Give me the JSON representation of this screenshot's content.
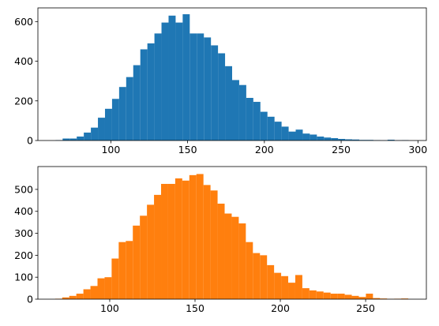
{
  "chart_data": [
    {
      "type": "histogram",
      "color": "#1f77b4",
      "bins": [
        64,
        68.6,
        73.2,
        77.8,
        82.4,
        87,
        91.6,
        96.2,
        100.8,
        105.4,
        110,
        114.6,
        119.2,
        123.8,
        128.4,
        133,
        137.6,
        142.2,
        146.8,
        151.4,
        156,
        160.6,
        165.2,
        169.8,
        174.4,
        179,
        183.6,
        188.2,
        192.8,
        197.4,
        202,
        206.6,
        211.2,
        215.8,
        220.4,
        225,
        229.6,
        234.2,
        238.8,
        243.4,
        248,
        252.6,
        257.2,
        261.8,
        266.4,
        271,
        275.6,
        280.2,
        284.8,
        289.4,
        294
      ],
      "counts": [
        2,
        10,
        10,
        20,
        40,
        65,
        115,
        160,
        210,
        270,
        320,
        380,
        460,
        490,
        540,
        595,
        630,
        595,
        637,
        540,
        540,
        520,
        480,
        440,
        375,
        305,
        280,
        215,
        195,
        145,
        120,
        95,
        70,
        45,
        55,
        35,
        30,
        20,
        15,
        12,
        8,
        6,
        5,
        3,
        3,
        2,
        1,
        4,
        1,
        2
      ],
      "xlim": [
        52.5,
        305.5
      ],
      "xticks": [
        100,
        150,
        200,
        250,
        300
      ],
      "ylim": [
        0,
        669
      ],
      "yticks": [
        0,
        200,
        400,
        600
      ]
    },
    {
      "type": "histogram",
      "color": "#ff7f0e",
      "bins": [
        68,
        72.14,
        76.28,
        80.42,
        84.56,
        88.7,
        92.84,
        96.98,
        101.12,
        105.26,
        109.4,
        113.54,
        117.68,
        121.82,
        125.96,
        130.1,
        134.24,
        138.38,
        142.52,
        146.66,
        150.8,
        154.94,
        159.08,
        163.22,
        167.36,
        171.5,
        175.64,
        179.78,
        183.92,
        188.06,
        192.2,
        196.34,
        200.48,
        204.62,
        208.76,
        212.9,
        217.04,
        221.18,
        225.32,
        229.46,
        233.6,
        237.74,
        241.88,
        246.02,
        250.16,
        254.3,
        258.44,
        262.58,
        266.72,
        270.86,
        275
      ],
      "counts": [
        2,
        8,
        15,
        25,
        45,
        60,
        95,
        100,
        185,
        260,
        265,
        335,
        380,
        430,
        475,
        525,
        525,
        550,
        540,
        565,
        570,
        520,
        495,
        435,
        390,
        375,
        345,
        260,
        210,
        200,
        155,
        120,
        105,
        75,
        110,
        50,
        40,
        35,
        30,
        25,
        25,
        20,
        15,
        10,
        25,
        5,
        3,
        1,
        2,
        3
      ],
      "xlim": [
        57.9,
        285.6
      ],
      "xticks": [
        100,
        150,
        200,
        250
      ],
      "ylim": [
        0,
        604
      ],
      "yticks": [
        0,
        100,
        200,
        300,
        400,
        500
      ]
    }
  ]
}
